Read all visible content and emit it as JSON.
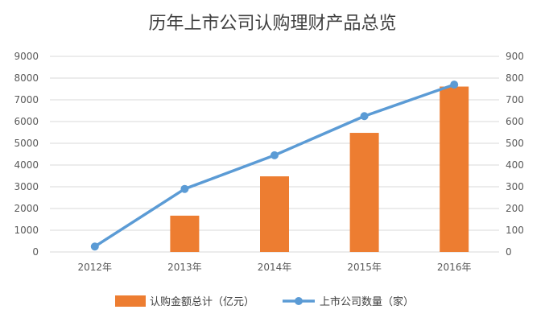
{
  "chart_data": {
    "type": "bar",
    "title": "历年上市公司认购理财产品总览",
    "categories": [
      "2012年",
      "2013年",
      "2014年",
      "2015年",
      "2016年"
    ],
    "series": [
      {
        "name": "认购金额总计（亿元）",
        "type": "bar",
        "axis": "left",
        "color": "#ed7d31",
        "values": [
          0,
          1670,
          3480,
          5480,
          7610
        ]
      },
      {
        "name": "上市公司数量（家）",
        "type": "line",
        "axis": "right",
        "color": "#5b9bd5",
        "values": [
          25,
          290,
          445,
          625,
          770
        ]
      }
    ],
    "ylim_left": [
      0,
      9000
    ],
    "ylim_right": [
      0,
      900
    ],
    "yticks_left": [
      "0",
      "1000",
      "2000",
      "3000",
      "4000",
      "5000",
      "6000",
      "7000",
      "8000",
      "9000"
    ],
    "yticks_right": [
      "0",
      "100",
      "200",
      "300",
      "400",
      "500",
      "600",
      "700",
      "800",
      "900"
    ],
    "grid": true,
    "legend_position": "bottom"
  }
}
